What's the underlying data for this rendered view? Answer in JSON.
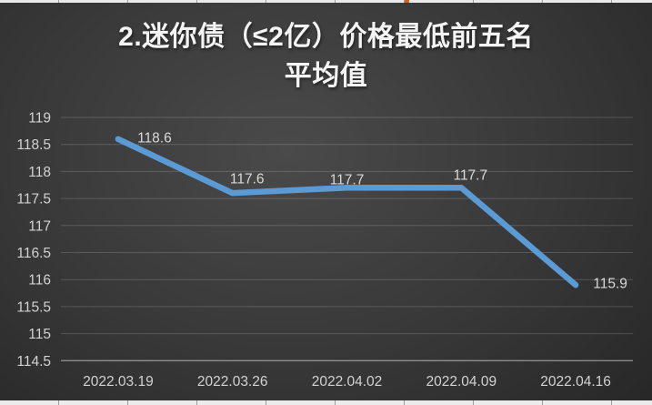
{
  "colors": {
    "line": "#5B9BD5",
    "title_text": "#F4F4F4",
    "axis_labels": "#D2D2D2",
    "data_labels": "#D9D9D9",
    "gridline": "rgba(255,255,255,0.17)",
    "axis_line": "rgba(255,255,255,0.45)",
    "chart_bg_center": "#4A4A4A",
    "chart_bg_mid": "#383838",
    "chart_bg_edge": "#222222",
    "sheet_strip_bg": "#EBEBEB",
    "sheet_strip_border": "#9E9E9E",
    "cell_marker": "#C9661F"
  },
  "chart_data": {
    "type": "line",
    "title": "2.迷你债（≤2亿）价格最低前五名 平均值",
    "title_lines": [
      "2.迷你债（≤2亿）价格最低前五名",
      "平均值"
    ],
    "categories": [
      "2022.03.19",
      "2022.03.26",
      "2022.04.02",
      "2022.04.09",
      "2022.04.16"
    ],
    "values": [
      118.6,
      117.6,
      117.7,
      117.7,
      115.9
    ],
    "data_labels": [
      "118.6",
      "117.6",
      "117.7",
      "117.7",
      "115.9"
    ],
    "yticks": [
      "119",
      "118.5",
      "118",
      "117.5",
      "117",
      "116.5",
      "116",
      "115.5",
      "115",
      "114.5"
    ],
    "ylim": [
      114.5,
      119
    ],
    "ytick_step": 0.5,
    "xlabel": "",
    "ylabel": "",
    "grid": true,
    "legend": "none"
  }
}
